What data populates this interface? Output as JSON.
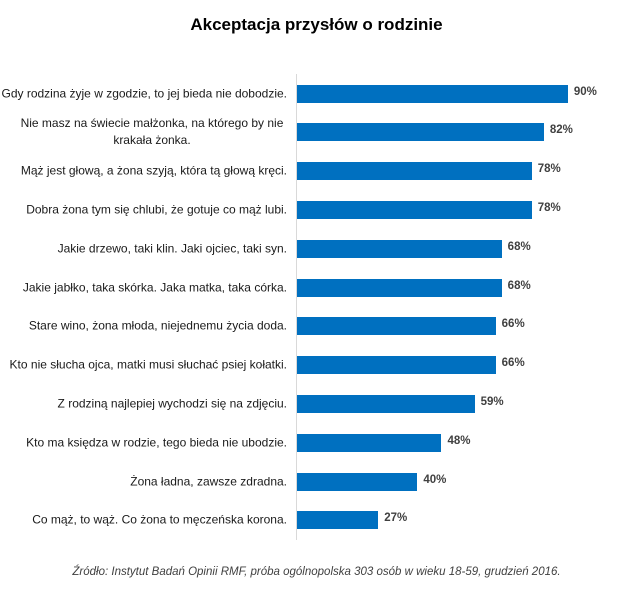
{
  "title": "Akceptacja przysłów o rodzinie",
  "source": "Źródło: Instytut Badań Opinii RMF, próba ogólnopolska 303 osób w wieku 18-59, grudzień 2016.",
  "colors": {
    "bar": "#0070c0",
    "axis": "#d9d9d9",
    "value_label": "#404040"
  },
  "chart_data": {
    "type": "bar",
    "orientation": "horizontal",
    "title": "Akceptacja przysłów o rodzinie",
    "xlabel": "",
    "ylabel": "",
    "xlim": [
      0,
      100
    ],
    "grid": false,
    "legend": null,
    "value_format": "percent",
    "categories": [
      "Gdy rodzina żyje w zgodzie, to jej bieda nie dobodzie.",
      "Nie masz na świecie małżonka, na którego by nie krakała żonka.",
      "Mąż jest głową, a żona szyją, która tą głową kręci.",
      "Dobra żona tym się chlubi, że gotuje co mąż lubi.",
      "Jakie drzewo, taki klin. Jaki ojciec, taki syn.",
      "Jakie jabłko, taka skórka. Jaka matka, taka córka.",
      "Stare wino, żona młoda, niejednemu życia doda.",
      "Kto nie słucha ojca, matki musi słuchać psiej kołatki.",
      "Z rodziną najlepiej wychodzi się na zdjęciu.",
      "Kto ma księdza w rodzie, tego bieda nie ubodzie.",
      "Żona ładna, zawsze zdradna.",
      "Co mąż, to wąż. Co żona to męczeńska korona."
    ],
    "values": [
      90,
      82,
      78,
      78,
      68,
      68,
      66,
      66,
      59,
      48,
      40,
      27
    ],
    "value_labels": [
      "90%",
      "82%",
      "78%",
      "78%",
      "68%",
      "68%",
      "66%",
      "66%",
      "59%",
      "48%",
      "40%",
      "27%"
    ],
    "source": "Źródło: Instytut Badań Opinii RMF, próba ogólnopolska 303 osób w wieku 18-59, grudzień 2016."
  }
}
